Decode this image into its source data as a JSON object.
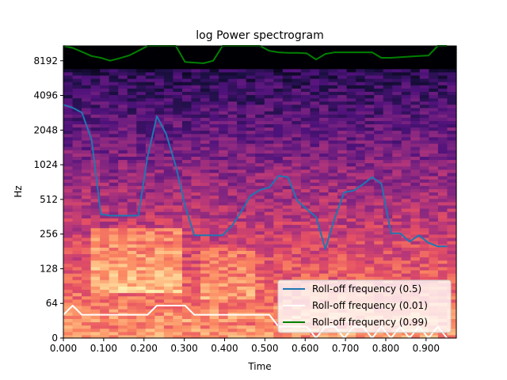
{
  "chart_data": {
    "type": "heatmap",
    "title": "log Power spectrogram",
    "xlabel": "Time",
    "ylabel": "Hz",
    "x_ticks": [
      "0.000",
      "0.100",
      "0.200",
      "0.300",
      "0.400",
      "0.500",
      "0.600",
      "0.700",
      "0.800",
      "0.900"
    ],
    "y_ticks": [
      "0",
      "64",
      "128",
      "256",
      "512",
      "1024",
      "2048",
      "4096",
      "8192"
    ],
    "xlim": [
      0,
      0.975
    ],
    "ylim": [
      0,
      11025
    ],
    "y_scale": "symlog (base 2, linthresh 64)",
    "colormap": "magma",
    "legend": {
      "location": "lower-right",
      "entries": [
        {
          "label": "Roll-off frequency (0.5)",
          "color": "#1f77b4"
        },
        {
          "label": "Roll-off frequency (0.01)",
          "color": "#ffffff"
        },
        {
          "label": "Roll-off frequency (0.99)",
          "color": "#008000"
        }
      ]
    },
    "series": [
      {
        "name": "Roll-off frequency (0.5)",
        "color": "#1f77b4",
        "x": [
          0.0,
          0.023,
          0.046,
          0.07,
          0.093,
          0.116,
          0.139,
          0.163,
          0.186,
          0.209,
          0.232,
          0.255,
          0.279,
          0.302,
          0.325,
          0.348,
          0.372,
          0.395,
          0.418,
          0.441,
          0.464,
          0.488,
          0.511,
          0.534,
          0.557,
          0.58,
          0.604,
          0.627,
          0.65,
          0.673,
          0.697,
          0.72,
          0.743,
          0.766,
          0.789,
          0.813,
          0.836,
          0.859,
          0.882,
          0.906,
          0.929,
          0.952
        ],
        "values": [
          3400,
          3200,
          2900,
          1700,
          380,
          370,
          370,
          370,
          370,
          1200,
          2700,
          1900,
          1000,
          450,
          250,
          250,
          250,
          250,
          300,
          400,
          550,
          620,
          650,
          820,
          800,
          500,
          420,
          360,
          190,
          350,
          590,
          610,
          690,
          800,
          700,
          260,
          260,
          220,
          250,
          215,
          200,
          200
        ]
      },
      {
        "name": "Roll-off frequency (0.01)",
        "color": "#ffffff",
        "x": [
          0.0,
          0.023,
          0.046,
          0.07,
          0.093,
          0.116,
          0.139,
          0.163,
          0.186,
          0.209,
          0.232,
          0.255,
          0.279,
          0.302,
          0.325,
          0.348,
          0.372,
          0.395,
          0.418,
          0.441,
          0.464,
          0.488,
          0.511,
          0.534,
          0.557,
          0.58,
          0.604,
          0.627,
          0.65,
          0.673,
          0.697,
          0.72,
          0.743,
          0.766,
          0.789,
          0.813,
          0.836,
          0.859,
          0.882,
          0.906,
          0.929,
          0.952
        ],
        "values": [
          43,
          60,
          43,
          43,
          43,
          43,
          43,
          43,
          43,
          43,
          60,
          60,
          60,
          60,
          43,
          43,
          43,
          43,
          43,
          43,
          43,
          43,
          43,
          21,
          21,
          21,
          21,
          0,
          21,
          21,
          0,
          21,
          21,
          0,
          21,
          0,
          21,
          0,
          21,
          0,
          21,
          0
        ]
      },
      {
        "name": "Roll-off frequency (0.99)",
        "color": "#008000",
        "x": [
          0.0,
          0.023,
          0.046,
          0.07,
          0.093,
          0.116,
          0.139,
          0.163,
          0.186,
          0.209,
          0.232,
          0.255,
          0.279,
          0.302,
          0.325,
          0.348,
          0.372,
          0.395,
          0.418,
          0.441,
          0.464,
          0.488,
          0.511,
          0.534,
          0.557,
          0.58,
          0.604,
          0.627,
          0.65,
          0.673,
          0.697,
          0.72,
          0.743,
          0.766,
          0.789,
          0.813,
          0.836,
          0.859,
          0.882,
          0.906,
          0.929,
          0.952
        ],
        "values": [
          11025,
          10600,
          9800,
          9000,
          8700,
          8200,
          8600,
          9100,
          10000,
          11025,
          11025,
          11025,
          11025,
          8000,
          7900,
          7800,
          8200,
          11025,
          11025,
          11025,
          11025,
          11025,
          10000,
          9700,
          9600,
          9600,
          9500,
          8400,
          9400,
          9700,
          9700,
          9700,
          9700,
          9700,
          8700,
          8700,
          8800,
          8900,
          9000,
          9100,
          11025,
          11025
        ]
      }
    ]
  }
}
